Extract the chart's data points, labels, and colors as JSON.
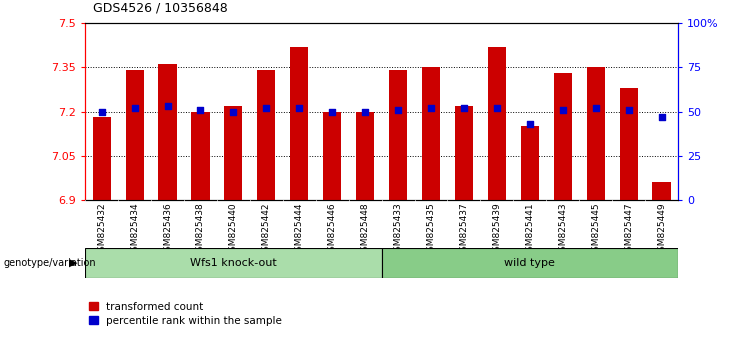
{
  "title": "GDS4526 / 10356848",
  "categories": [
    "GSM825432",
    "GSM825434",
    "GSM825436",
    "GSM825438",
    "GSM825440",
    "GSM825442",
    "GSM825444",
    "GSM825446",
    "GSM825448",
    "GSM825433",
    "GSM825435",
    "GSM825437",
    "GSM825439",
    "GSM825441",
    "GSM825443",
    "GSM825445",
    "GSM825447",
    "GSM825449"
  ],
  "bar_values": [
    7.18,
    7.34,
    7.36,
    7.2,
    7.22,
    7.34,
    7.42,
    7.2,
    7.2,
    7.34,
    7.35,
    7.22,
    7.42,
    7.15,
    7.33,
    7.35,
    7.28,
    6.96
  ],
  "dot_values": [
    50,
    52,
    53,
    51,
    50,
    52,
    52,
    50,
    50,
    51,
    52,
    52,
    52,
    43,
    51,
    52,
    51,
    47
  ],
  "bar_color": "#cc0000",
  "dot_color": "#0000cc",
  "ylim_left": [
    6.9,
    7.5
  ],
  "ylim_right": [
    0,
    100
  ],
  "yticks_left": [
    6.9,
    7.05,
    7.2,
    7.35,
    7.5
  ],
  "ytick_labels_left": [
    "6.9",
    "7.05",
    "7.2",
    "7.35",
    "7.5"
  ],
  "yticks_right": [
    0,
    25,
    50,
    75,
    100
  ],
  "ytick_labels_right": [
    "0",
    "25",
    "50",
    "75",
    "100%"
  ],
  "group1_label": "Wfs1 knock-out",
  "group2_label": "wild type",
  "group1_count": 9,
  "group2_count": 9,
  "group1_color": "#aaddaa",
  "group2_color": "#88cc88",
  "legend_red_label": "transformed count",
  "legend_blue_label": "percentile rank within the sample",
  "genotype_label": "genotype/variation",
  "hline_values": [
    7.05,
    7.2,
    7.35
  ],
  "background_color": "#ffffff",
  "plot_bg_color": "#ffffff",
  "tick_label_area_color": "#cccccc"
}
